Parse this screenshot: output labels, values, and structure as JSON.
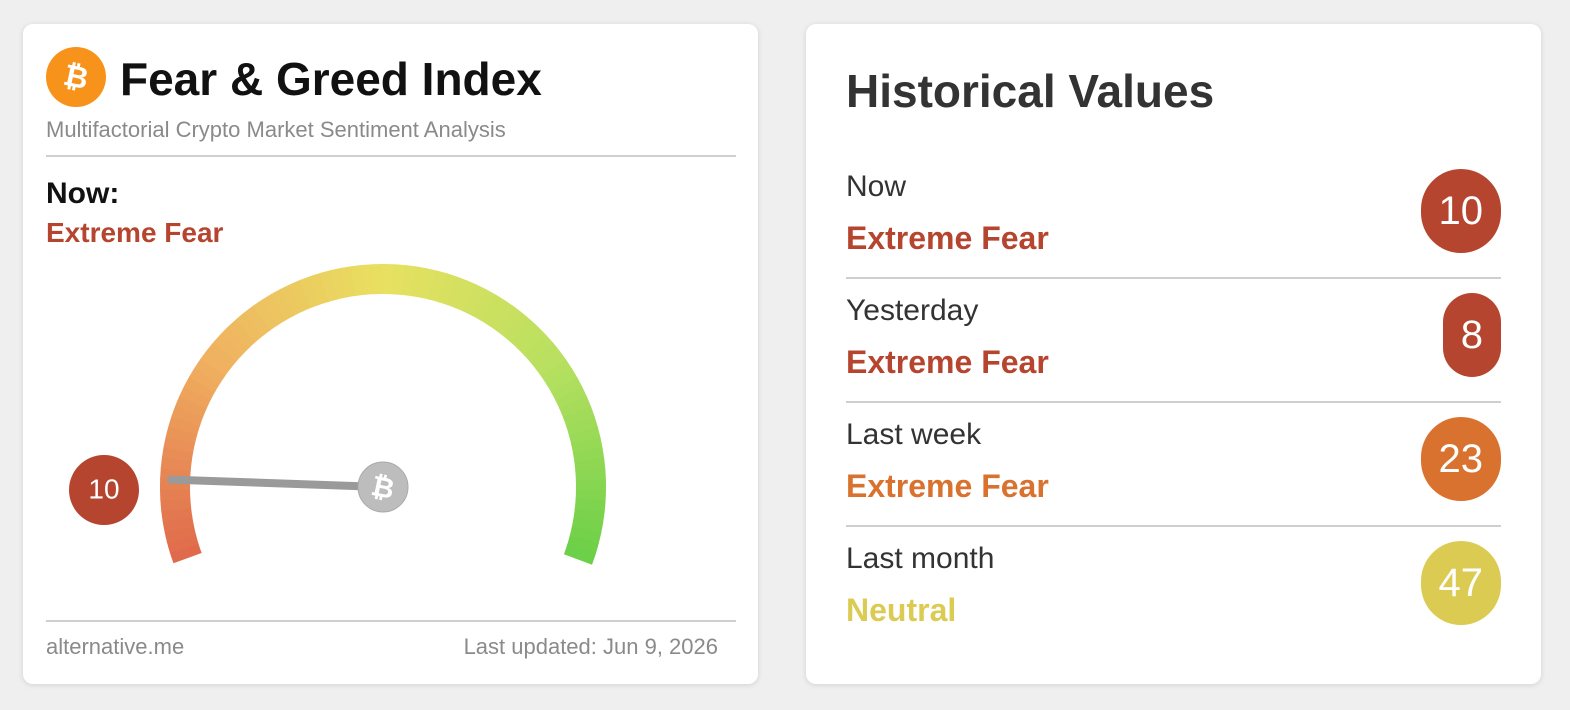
{
  "widget": {
    "title": "Fear & Greed Index",
    "subtitle": "Multifactorial Crypto Market Sentiment Analysis",
    "now_label": "Now:",
    "classification": "Extreme Fear",
    "value": 10,
    "color": "#b5452e",
    "source": "alternative.me",
    "updated": "Last updated: Jun 9, 2026"
  },
  "history": {
    "title": "Historical Values",
    "rows": [
      {
        "label": "Now",
        "classification": "Extreme Fear",
        "value": 10,
        "color": "#b5452e"
      },
      {
        "label": "Yesterday",
        "classification": "Extreme Fear",
        "value": 8,
        "color": "#b5452e"
      },
      {
        "label": "Last week",
        "classification": "Extreme Fear",
        "value": 23,
        "color": "#d9722f"
      },
      {
        "label": "Last month",
        "classification": "Neutral",
        "value": 47,
        "color": "#dccb53"
      }
    ]
  }
}
